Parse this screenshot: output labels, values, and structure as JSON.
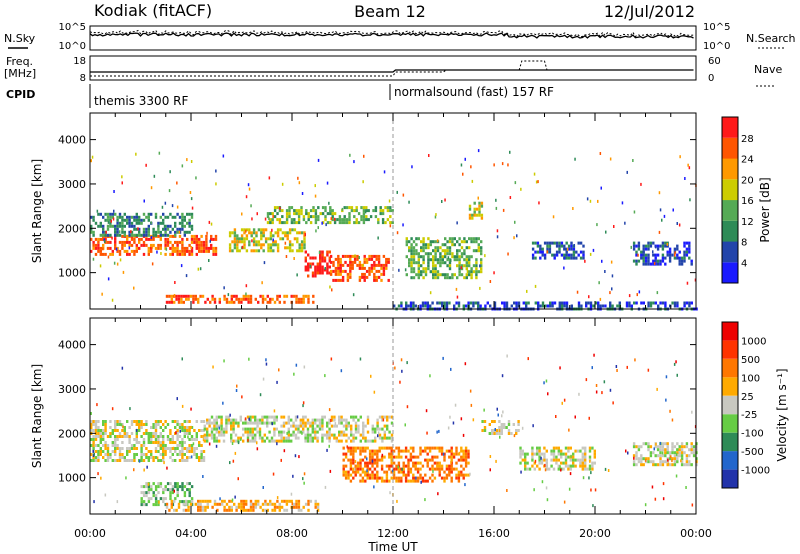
{
  "header": {
    "site": "Kodiak (fitACF)",
    "beam": "Beam 12",
    "date": "12/Jul/2012"
  },
  "top_panels": {
    "nsky_label": "N.Sky",
    "nsearch_label": "N.Search",
    "freq_label_1": "Freq.",
    "freq_label_2": "[MHz]",
    "nave_label": "Nave",
    "cpid_label": "CPID",
    "noise_ticks_left": [
      "10^5",
      "10^0"
    ],
    "noise_ticks_right": [
      "10^5",
      "10^0"
    ],
    "freq_ticks": [
      "18",
      "8"
    ],
    "nave_ticks": [
      "60",
      "0"
    ],
    "cpid_segments": [
      {
        "label": "themis 3300 RF",
        "start_hour": 0
      },
      {
        "label": "normalsound (fast) 157 RF",
        "start_hour": 12
      }
    ]
  },
  "chart_data": [
    {
      "type": "heatmap",
      "panel": "power",
      "ylabel": "Slant Range [km]",
      "xlabel": "",
      "x_ticks": [
        "00:00",
        "04:00",
        "08:00",
        "12:00",
        "16:00",
        "20:00",
        "00:00"
      ],
      "xlim_hours": [
        0,
        24
      ],
      "y_ticks": [
        "1000",
        "2000",
        "3000",
        "4000"
      ],
      "ylim_km": [
        180,
        4600
      ],
      "marker_hour": 12,
      "colorbar": {
        "label": "Power [dB]",
        "ticks": [
          "4",
          "8",
          "12",
          "16",
          "20",
          "24",
          "28"
        ],
        "colors": [
          "#1a1aff",
          "#2244aa",
          "#2e8b57",
          "#55aa55",
          "#cccc00",
          "#ff9900",
          "#ff5500",
          "#ff1a1a"
        ]
      },
      "echo_regions": [
        {
          "t0": 0.0,
          "t1": 5.0,
          "r0": 1400,
          "r1": 1850,
          "level": 6
        },
        {
          "t0": 0.0,
          "t1": 4.0,
          "r0": 1850,
          "r1": 2350,
          "level": 2
        },
        {
          "t0": 5.5,
          "t1": 8.5,
          "r0": 1500,
          "r1": 2000,
          "level": 4
        },
        {
          "t0": 3.0,
          "t1": 9.0,
          "r0": 300,
          "r1": 500,
          "level": 6
        },
        {
          "t0": 8.5,
          "t1": 9.5,
          "r0": 900,
          "r1": 1500,
          "level": 7
        },
        {
          "t0": 9.5,
          "t1": 11.8,
          "r0": 800,
          "r1": 1400,
          "level": 6
        },
        {
          "t0": 7.0,
          "t1": 12.0,
          "r0": 2100,
          "r1": 2500,
          "level": 3
        },
        {
          "t0": 12.5,
          "t1": 15.5,
          "r0": 900,
          "r1": 1800,
          "level": 3
        },
        {
          "t0": 15.0,
          "t1": 15.5,
          "r0": 2200,
          "r1": 2600,
          "level": 4
        },
        {
          "t0": 17.5,
          "t1": 19.5,
          "r0": 1300,
          "r1": 1700,
          "level": 1
        },
        {
          "t0": 21.5,
          "t1": 23.8,
          "r0": 1200,
          "r1": 1700,
          "level": 1
        },
        {
          "t0": 12.0,
          "t1": 24.0,
          "r0": 200,
          "r1": 350,
          "level": 1
        }
      ]
    },
    {
      "type": "heatmap",
      "panel": "velocity",
      "ylabel": "Slant Range [km]",
      "xlabel": "Time UT",
      "x_ticks": [
        "00:00",
        "04:00",
        "08:00",
        "12:00",
        "16:00",
        "20:00",
        "00:00"
      ],
      "xlim_hours": [
        0,
        24
      ],
      "y_ticks": [
        "1000",
        "2000",
        "3000",
        "4000"
      ],
      "ylim_km": [
        180,
        4600
      ],
      "marker_hour": 12,
      "colorbar": {
        "label": "Velocity [m s⁻¹]",
        "ticks": [
          "1000",
          "500",
          "100",
          "25",
          "-25",
          "-100",
          "-500",
          "-1000"
        ],
        "colors": [
          "#2233aa",
          "#2266cc",
          "#2e8b57",
          "#66cc44",
          "#c8c8c0",
          "#ffaa00",
          "#ff7700",
          "#ff3300",
          "#ee0000"
        ]
      },
      "echo_regions": [
        {
          "t0": 0.0,
          "t1": 4.5,
          "r0": 1400,
          "r1": 2300,
          "level": 4
        },
        {
          "t0": 4.5,
          "t1": 12.0,
          "r0": 1800,
          "r1": 2400,
          "level": 4
        },
        {
          "t0": 2.0,
          "t1": 4.0,
          "r0": 400,
          "r1": 900,
          "level": 3
        },
        {
          "t0": 3.0,
          "t1": 9.0,
          "r0": 250,
          "r1": 500,
          "level": 5
        },
        {
          "t0": 10.0,
          "t1": 15.0,
          "r0": 900,
          "r1": 1700,
          "level": 6
        },
        {
          "t0": 15.5,
          "t1": 17.0,
          "r0": 2000,
          "r1": 2300,
          "level": 4
        },
        {
          "t0": 17.0,
          "t1": 20.0,
          "r0": 1200,
          "r1": 1700,
          "level": 4
        },
        {
          "t0": 21.5,
          "t1": 24.0,
          "r0": 1300,
          "r1": 1800,
          "level": 4
        }
      ]
    }
  ]
}
